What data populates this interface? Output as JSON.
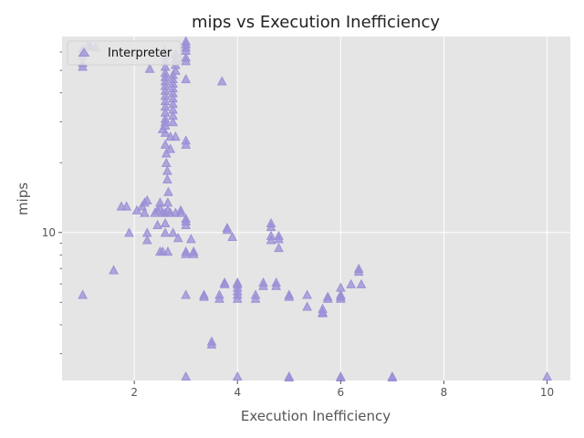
{
  "chart_data": {
    "type": "scatter",
    "title": "mips vs Execution Inefficiency",
    "xlabel": "Execution Inefficiency",
    "ylabel": "mips",
    "xlim": [
      0.6,
      10.45
    ],
    "ylim": [
      2.3,
      70
    ],
    "yscale": "log",
    "xticks": [
      2,
      4,
      6,
      8,
      10
    ],
    "yticks_labeled": [
      10
    ],
    "yticks_minor": [
      3,
      4,
      5,
      6,
      7,
      8,
      9,
      20,
      30,
      40,
      50,
      60
    ],
    "grid": true,
    "background_color": "#e5e5e5",
    "marker": "triangle-up",
    "marker_color": "#9b8fd6",
    "legend": {
      "placement": "top-left",
      "entries": [
        "Interpreter"
      ]
    },
    "series": [
      {
        "name": "Interpreter",
        "points": [
          [
            1.0,
            5.4
          ],
          [
            1.0,
            54
          ],
          [
            1.0,
            52
          ],
          [
            1.0,
            58
          ],
          [
            1.0,
            62
          ],
          [
            1.1,
            64
          ],
          [
            1.15,
            64
          ],
          [
            1.25,
            63
          ],
          [
            1.6,
            6.9
          ],
          [
            1.75,
            13
          ],
          [
            1.85,
            13
          ],
          [
            1.9,
            10
          ],
          [
            2.05,
            12.5
          ],
          [
            2.15,
            13
          ],
          [
            2.2,
            13.5
          ],
          [
            2.2,
            12.2
          ],
          [
            2.25,
            13.8
          ],
          [
            2.25,
            10
          ],
          [
            2.25,
            9.3
          ],
          [
            2.3,
            51
          ],
          [
            2.4,
            12.2
          ],
          [
            2.45,
            12.5
          ],
          [
            2.45,
            10.8
          ],
          [
            2.5,
            13.5
          ],
          [
            2.5,
            12.8
          ],
          [
            2.5,
            8.3
          ],
          [
            2.55,
            12.2
          ],
          [
            2.55,
            8.3
          ],
          [
            2.55,
            28
          ],
          [
            2.6,
            27
          ],
          [
            2.6,
            29
          ],
          [
            2.6,
            30
          ],
          [
            2.6,
            31
          ],
          [
            2.6,
            33
          ],
          [
            2.6,
            35
          ],
          [
            2.6,
            37
          ],
          [
            2.6,
            39
          ],
          [
            2.6,
            41
          ],
          [
            2.6,
            43
          ],
          [
            2.6,
            45
          ],
          [
            2.6,
            47
          ],
          [
            2.6,
            49
          ],
          [
            2.6,
            52
          ],
          [
            2.6,
            55
          ],
          [
            2.6,
            58
          ],
          [
            2.6,
            61
          ],
          [
            2.6,
            12.2
          ],
          [
            2.6,
            11
          ],
          [
            2.6,
            10
          ],
          [
            2.6,
            24
          ],
          [
            2.62,
            22
          ],
          [
            2.62,
            20
          ],
          [
            2.64,
            18.5
          ],
          [
            2.64,
            17
          ],
          [
            2.66,
            15
          ],
          [
            2.65,
            13.5
          ],
          [
            2.65,
            12.5
          ],
          [
            2.65,
            8.3
          ],
          [
            2.7,
            26
          ],
          [
            2.7,
            23
          ],
          [
            2.7,
            12.2
          ],
          [
            2.75,
            10
          ],
          [
            2.75,
            30
          ],
          [
            2.75,
            32
          ],
          [
            2.75,
            34
          ],
          [
            2.75,
            36
          ],
          [
            2.75,
            38
          ],
          [
            2.75,
            40
          ],
          [
            2.75,
            42
          ],
          [
            2.75,
            44
          ],
          [
            2.75,
            46
          ],
          [
            2.75,
            48
          ],
          [
            2.8,
            50
          ],
          [
            2.8,
            53
          ],
          [
            2.8,
            56
          ],
          [
            2.8,
            59
          ],
          [
            2.8,
            26
          ],
          [
            2.8,
            12.2
          ],
          [
            2.85,
            9.5
          ],
          [
            2.9,
            12.5
          ],
          [
            2.9,
            12.2
          ],
          [
            3.0,
            5.4
          ],
          [
            3.0,
            2.4
          ],
          [
            3.0,
            8.3
          ],
          [
            3.0,
            8.1
          ],
          [
            3.0,
            11.2
          ],
          [
            3.0,
            11.5
          ],
          [
            3.0,
            10.8
          ],
          [
            3.0,
            25
          ],
          [
            3.0,
            24
          ],
          [
            3.0,
            46
          ],
          [
            3.0,
            55
          ],
          [
            3.0,
            57
          ],
          [
            3.0,
            61
          ],
          [
            3.0,
            63
          ],
          [
            3.0,
            65
          ],
          [
            3.0,
            67
          ],
          [
            3.1,
            9.4
          ],
          [
            3.15,
            8.3
          ],
          [
            3.15,
            8.1
          ],
          [
            3.35,
            5.4
          ],
          [
            3.35,
            5.3
          ],
          [
            3.5,
            3.4
          ],
          [
            3.5,
            3.3
          ],
          [
            3.65,
            5.4
          ],
          [
            3.65,
            5.2
          ],
          [
            3.7,
            45
          ],
          [
            3.75,
            6.1
          ],
          [
            3.75,
            6.0
          ],
          [
            3.8,
            10.5
          ],
          [
            3.8,
            10.3
          ],
          [
            3.9,
            9.6
          ],
          [
            4.0,
            2.4
          ],
          [
            4.0,
            5.4
          ],
          [
            4.0,
            5.2
          ],
          [
            4.0,
            5.6
          ],
          [
            4.0,
            6.1
          ],
          [
            4.0,
            6.0
          ],
          [
            4.0,
            5.8
          ],
          [
            4.35,
            5.4
          ],
          [
            4.35,
            5.2
          ],
          [
            4.5,
            6.1
          ],
          [
            4.5,
            5.9
          ],
          [
            4.65,
            11
          ],
          [
            4.65,
            10.6
          ],
          [
            4.65,
            9.7
          ],
          [
            4.65,
            9.3
          ],
          [
            4.75,
            6.1
          ],
          [
            4.75,
            5.9
          ],
          [
            4.8,
            9.7
          ],
          [
            4.8,
            9.4
          ],
          [
            4.8,
            8.6
          ],
          [
            5.0,
            5.4
          ],
          [
            5.0,
            5.3
          ],
          [
            5.0,
            2.4
          ],
          [
            5.0,
            2.38
          ],
          [
            5.35,
            5.4
          ],
          [
            5.35,
            4.8
          ],
          [
            5.65,
            4.7
          ],
          [
            5.65,
            4.55
          ],
          [
            5.65,
            4.5
          ],
          [
            5.75,
            5.3
          ],
          [
            5.75,
            5.2
          ],
          [
            6.0,
            5.8
          ],
          [
            6.0,
            5.4
          ],
          [
            6.0,
            5.3
          ],
          [
            6.0,
            5.2
          ],
          [
            6.0,
            2.4
          ],
          [
            6.0,
            2.38
          ],
          [
            6.2,
            6.0
          ],
          [
            6.35,
            7.0
          ],
          [
            6.35,
            6.8
          ],
          [
            6.4,
            6.0
          ],
          [
            7.0,
            2.4
          ],
          [
            7.0,
            2.38
          ],
          [
            10.0,
            2.4
          ]
        ]
      }
    ]
  }
}
